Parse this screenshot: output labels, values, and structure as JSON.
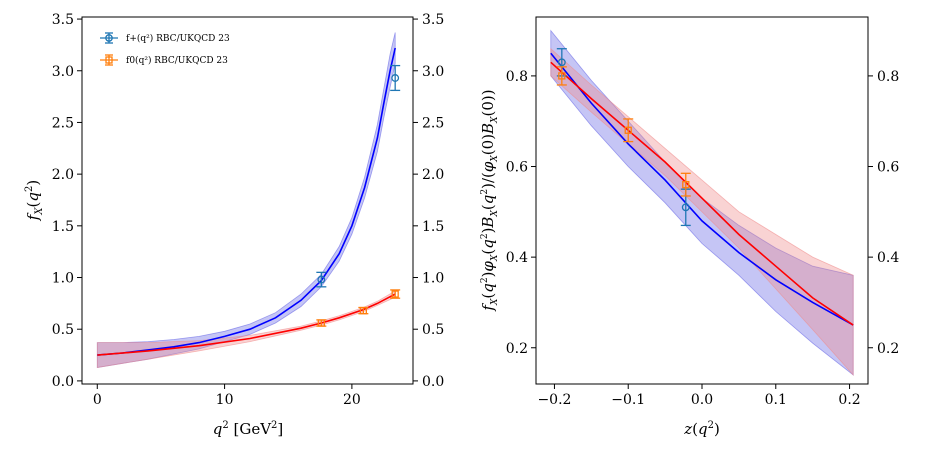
{
  "colors": {
    "blue_line": "#0000ff",
    "red_line": "#ff0000",
    "blue_band": "#6666e6",
    "red_band": "#f08c8c",
    "purple_band": "#a040a0",
    "blue_points": "#1f77b4",
    "orange_points": "#ff7f0e"
  },
  "chart_data": [
    {
      "type": "line",
      "xlabel": "q^2 [GeV^2]",
      "ylabel": "f_X(q^2)",
      "xlim": [
        -1.2,
        24.8
      ],
      "ylim": [
        -0.03,
        3.52
      ],
      "xticks": [
        0,
        10,
        20
      ],
      "xtick_labels": [
        "0",
        "10",
        "20"
      ],
      "yticks": [
        0.0,
        0.5,
        1.0,
        1.5,
        2.0,
        2.5,
        3.0,
        3.5
      ],
      "ytick_labels": [
        "0.0",
        "0.5",
        "1.0",
        "1.5",
        "2.0",
        "2.5",
        "3.0",
        "3.5"
      ],
      "legend": {
        "placement": "top-left",
        "entries": [
          "f+(q²) RBC/UKQCD 23",
          "f0(q²) RBC/UKQCD 23"
        ]
      },
      "series": [
        {
          "name": "f+ fit",
          "color": "blue",
          "x": [
            0,
            2,
            4,
            6,
            8,
            10,
            12,
            14,
            16,
            17.6,
            19,
            20,
            21,
            22,
            22.5,
            23,
            23.4
          ],
          "y": [
            0.25,
            0.27,
            0.3,
            0.33,
            0.37,
            0.43,
            0.5,
            0.61,
            0.78,
            0.97,
            1.23,
            1.5,
            1.87,
            2.35,
            2.68,
            3.0,
            3.22
          ],
          "band_upper": [
            0.37,
            0.37,
            0.38,
            0.4,
            0.43,
            0.48,
            0.55,
            0.66,
            0.84,
            1.03,
            1.3,
            1.58,
            1.97,
            2.48,
            2.82,
            3.16,
            3.37
          ],
          "band_lower": [
            0.13,
            0.17,
            0.21,
            0.26,
            0.31,
            0.38,
            0.45,
            0.56,
            0.72,
            0.91,
            1.16,
            1.42,
            1.77,
            2.22,
            2.54,
            2.84,
            3.07
          ]
        },
        {
          "name": "f0 fit",
          "color": "red",
          "x": [
            0,
            4,
            8,
            12,
            16,
            17.6,
            19,
            20.9,
            22,
            23.4
          ],
          "y": [
            0.25,
            0.29,
            0.34,
            0.41,
            0.51,
            0.56,
            0.61,
            0.69,
            0.75,
            0.84
          ],
          "band_upper": [
            0.37,
            0.37,
            0.39,
            0.44,
            0.53,
            0.58,
            0.63,
            0.71,
            0.77,
            0.87
          ],
          "band_lower": [
            0.13,
            0.21,
            0.29,
            0.38,
            0.49,
            0.54,
            0.59,
            0.67,
            0.73,
            0.81
          ]
        }
      ],
      "points": [
        {
          "name": "f+ data",
          "color": "blue",
          "x": [
            17.6,
            23.4
          ],
          "y": [
            0.98,
            2.93
          ],
          "err": [
            0.07,
            0.12
          ]
        },
        {
          "name": "f0 data",
          "color": "orange",
          "x": [
            17.6,
            20.9,
            23.4
          ],
          "y": [
            0.56,
            0.68,
            0.84
          ],
          "err": [
            0.03,
            0.03,
            0.04
          ]
        }
      ]
    },
    {
      "type": "line",
      "xlabel": "z(q^2)",
      "ylabel": "f_X(q^2) φ_X(q^2) B_X(q^2) / (φ_X(0) B_X(0))",
      "xlim": [
        -0.225,
        0.225
      ],
      "ylim": [
        0.12,
        0.93
      ],
      "xticks": [
        -0.2,
        -0.1,
        0.0,
        0.1,
        0.2
      ],
      "xtick_labels": [
        "−0.2",
        "−0.1",
        "0.0",
        "0.1",
        "0.2"
      ],
      "yticks": [
        0.2,
        0.4,
        0.6,
        0.8
      ],
      "ytick_labels": [
        "0.2",
        "0.4",
        "0.6",
        "0.8"
      ],
      "series": [
        {
          "name": "blue fit",
          "color": "blue",
          "x": [
            -0.205,
            -0.15,
            -0.1,
            -0.05,
            0.0,
            0.05,
            0.1,
            0.15,
            0.205
          ],
          "y": [
            0.85,
            0.74,
            0.65,
            0.57,
            0.48,
            0.41,
            0.35,
            0.3,
            0.25
          ],
          "band_upper": [
            0.9,
            0.79,
            0.7,
            0.61,
            0.53,
            0.47,
            0.42,
            0.38,
            0.36
          ],
          "band_lower": [
            0.8,
            0.69,
            0.6,
            0.52,
            0.43,
            0.36,
            0.28,
            0.21,
            0.14
          ]
        },
        {
          "name": "red fit",
          "color": "red",
          "x": [
            -0.205,
            -0.15,
            -0.1,
            -0.05,
            0.0,
            0.05,
            0.1,
            0.15,
            0.205
          ],
          "y": [
            0.83,
            0.75,
            0.68,
            0.61,
            0.53,
            0.45,
            0.38,
            0.31,
            0.25
          ],
          "band_upper": [
            0.86,
            0.78,
            0.71,
            0.64,
            0.57,
            0.5,
            0.45,
            0.4,
            0.36
          ],
          "band_lower": [
            0.8,
            0.72,
            0.65,
            0.58,
            0.5,
            0.42,
            0.33,
            0.24,
            0.14
          ]
        }
      ],
      "points": [
        {
          "name": "blue data",
          "color": "blue",
          "x": [
            -0.19,
            -0.022
          ],
          "y": [
            0.83,
            0.51
          ],
          "err": [
            0.03,
            0.04
          ]
        },
        {
          "name": "orange data",
          "color": "orange",
          "x": [
            -0.19,
            -0.1,
            -0.022
          ],
          "y": [
            0.8,
            0.68,
            0.56
          ],
          "err": [
            0.02,
            0.025,
            0.025
          ]
        }
      ]
    }
  ]
}
